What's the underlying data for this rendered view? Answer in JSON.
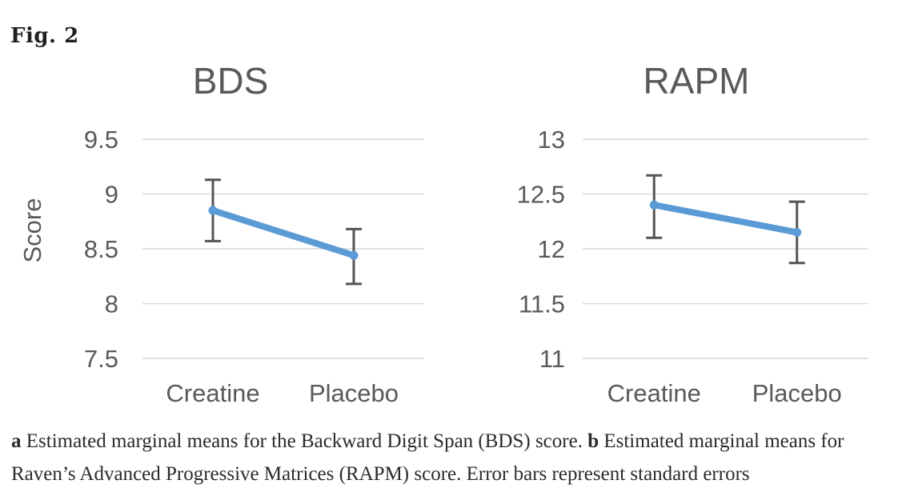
{
  "figure_label": "Fig. 2",
  "caption": {
    "part_a_label": "a",
    "part_a_text": " Estimated marginal means for the Backward Digit Span (BDS) score. ",
    "part_b_label": "b",
    "part_b_text": " Estimated marginal means for Raven’s Advanced Progressive Matrices (RAPM) score. Error bars represent standard errors"
  },
  "colors": {
    "line": "#5B9BD5",
    "error_bar": "#555555",
    "gridline": "#D9D9D9",
    "axis_text": "#595959",
    "title_text": "#595959",
    "figure_text": "#1f1f1f"
  },
  "chart_data": [
    {
      "type": "line",
      "title": "BDS",
      "xlabel": "",
      "ylabel": "Score",
      "categories": [
        "Creatine",
        "Placebo"
      ],
      "values": [
        8.85,
        8.44
      ],
      "error_upper": [
        9.13,
        8.68
      ],
      "error_lower": [
        8.57,
        8.18
      ],
      "ylim": [
        7.5,
        9.5
      ],
      "yticks": [
        9.5,
        9,
        8.5,
        8,
        7.5
      ],
      "ytick_labels": [
        "9.5",
        "9",
        "8.5",
        "8",
        "7.5"
      ],
      "grid": "horizontal",
      "legend": "none",
      "error_bars": "standard errors"
    },
    {
      "type": "line",
      "title": "RAPM",
      "xlabel": "",
      "ylabel": "",
      "categories": [
        "Creatine",
        "Placebo"
      ],
      "values": [
        12.4,
        12.15
      ],
      "error_upper": [
        12.67,
        12.43
      ],
      "error_lower": [
        12.1,
        11.87
      ],
      "ylim": [
        11,
        13
      ],
      "yticks": [
        13,
        12.5,
        12,
        11.5,
        11
      ],
      "ytick_labels": [
        "13",
        "12.5",
        "12",
        "11.5",
        "11"
      ],
      "grid": "horizontal",
      "legend": "none",
      "error_bars": "standard errors"
    }
  ]
}
